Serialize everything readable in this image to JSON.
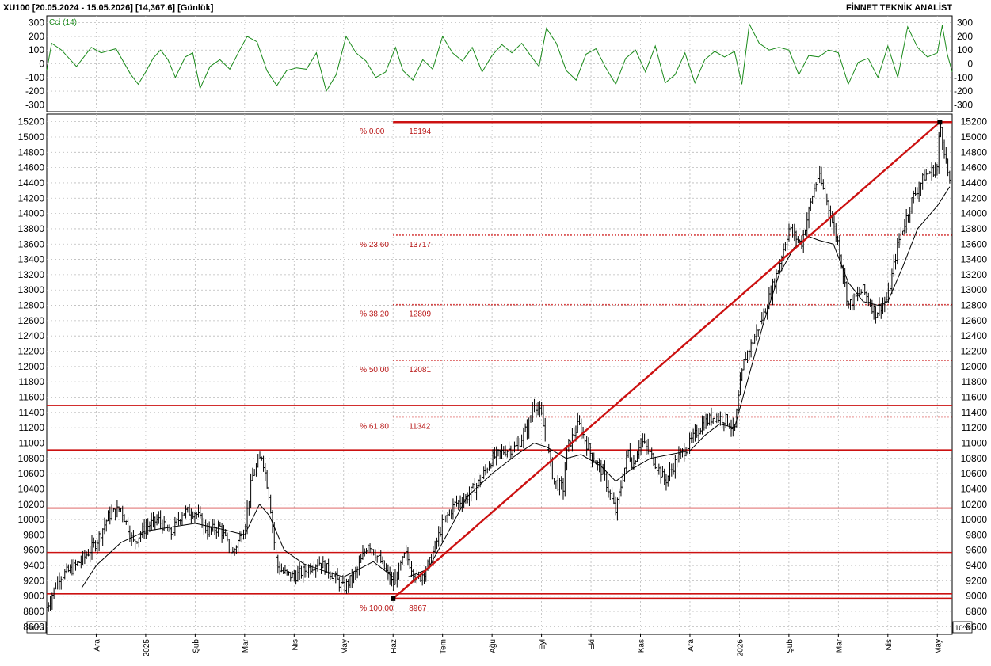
{
  "header": {
    "left": "XU100  [20.05.2024 - 15.05.2026]  [14,367.6]  [Günlük]",
    "right": "FİNNET TEKNİK ANALİST"
  },
  "cci": {
    "title": "Cci (14)",
    "ylim": [
      -350,
      350
    ],
    "ticks": [
      300,
      200,
      100,
      0,
      -100,
      -200,
      -300
    ],
    "tick_labels": [
      "300",
      "200",
      "100",
      "0",
      "-100",
      "-200",
      "-300"
    ],
    "color": "#1a8a1a"
  },
  "price": {
    "ylim": [
      8500,
      15300
    ],
    "ticks": [
      15200,
      15000,
      14800,
      14600,
      14400,
      14200,
      14000,
      13800,
      13600,
      13400,
      13200,
      13000,
      12800,
      12600,
      12400,
      12200,
      12000,
      11800,
      11600,
      11400,
      11200,
      11000,
      10800,
      10600,
      10400,
      10200,
      10000,
      9800,
      9600,
      9400,
      9200,
      9000,
      8800,
      8600
    ],
    "scale_label": "10^3",
    "bar_color": "#000000",
    "ma_color": "#000000",
    "line_color": "#cc1111"
  },
  "x_axis": {
    "labels": [
      "Ara",
      "2025",
      "Şub",
      "Mar",
      "Nis",
      "May",
      "Haz",
      "Tem",
      "Ağu",
      "Eyl",
      "Eki",
      "Kas",
      "Ara",
      "2026",
      "Şub",
      "Mar",
      "Nis",
      "May"
    ],
    "positions": [
      7.0,
      8.0,
      9.0,
      10.0,
      11.0,
      12.0,
      13.0,
      14.0,
      15.0,
      16.0,
      17.0,
      18.0,
      19.0,
      20.0,
      21.0,
      22.0,
      23.0,
      24.0
    ],
    "xlim": [
      6.0,
      24.3
    ]
  },
  "horizontal_lines": [
    9030,
    9570,
    10150,
    10910,
    11490
  ],
  "fibonacci": {
    "levels": [
      {
        "pct": "% 0.00",
        "value": "15194",
        "y": 15194,
        "style": "solid"
      },
      {
        "pct": "% 23.60",
        "value": "13717",
        "y": 13717,
        "style": "dotted"
      },
      {
        "pct": "% 38.20",
        "value": "12809",
        "y": 12809,
        "style": "dotted"
      },
      {
        "pct": "% 50.00",
        "value": "12081",
        "y": 12081,
        "style": "dotted"
      },
      {
        "pct": "% 61.80",
        "value": "11342",
        "y": 11342,
        "style": "dotted"
      },
      {
        "pct": "% 100.00",
        "value": "8967",
        "y": 8967,
        "style": "solid"
      }
    ],
    "x_start": 13.0
  },
  "trendline": {
    "from": [
      13.0,
      8967
    ],
    "to": [
      24.05,
      15194
    ]
  },
  "chart_data": {
    "type": "line",
    "title": "XU100",
    "series": [
      {
        "name": "Close",
        "x": [
          6.0,
          6.25,
          6.5,
          6.75,
          7.0,
          7.25,
          7.5,
          7.75,
          8.0,
          8.25,
          8.5,
          8.75,
          9.0,
          9.25,
          9.5,
          9.75,
          10.0,
          10.15,
          10.35,
          10.5,
          10.65,
          10.8,
          11.0,
          11.25,
          11.5,
          11.75,
          12.0,
          12.25,
          12.5,
          12.75,
          13.0,
          13.25,
          13.5,
          13.75,
          14.0,
          14.25,
          14.5,
          14.75,
          15.0,
          15.25,
          15.5,
          15.75,
          15.85,
          16.0,
          16.25,
          16.45,
          16.5,
          16.75,
          17.0,
          17.25,
          17.5,
          17.75,
          17.85,
          18.0,
          18.25,
          18.5,
          18.75,
          19.0,
          19.25,
          19.5,
          19.75,
          19.9,
          20.0,
          20.1,
          20.25,
          20.5,
          20.75,
          21.0,
          21.25,
          21.5,
          21.6,
          21.75,
          22.0,
          22.2,
          22.5,
          22.75,
          23.0,
          23.2,
          23.5,
          23.75,
          24.0,
          24.05,
          24.15,
          24.25
        ],
        "values": [
          8850,
          9250,
          9350,
          9500,
          9700,
          10050,
          10150,
          9700,
          9900,
          10000,
          9800,
          10100,
          10100,
          9850,
          9900,
          9550,
          9900,
          10550,
          10850,
          10300,
          9400,
          9300,
          9250,
          9350,
          9450,
          9300,
          9100,
          9300,
          9700,
          9450,
          9150,
          9550,
          9200,
          9450,
          9950,
          10200,
          10300,
          10500,
          10800,
          10900,
          10950,
          11250,
          11550,
          11350,
          10500,
          10400,
          10900,
          11250,
          10850,
          10600,
          10100,
          10900,
          10700,
          11050,
          10800,
          10500,
          10800,
          11000,
          11250,
          11350,
          11300,
          11150,
          11700,
          12100,
          12300,
          12700,
          13200,
          13800,
          13600,
          14300,
          14500,
          14200,
          13600,
          12800,
          13000,
          12700,
          12900,
          13600,
          14200,
          14500,
          14600,
          15194,
          14800,
          14367
        ]
      },
      {
        "name": "MA",
        "x": [
          6.7,
          7.0,
          7.5,
          8.0,
          8.5,
          9.0,
          9.5,
          10.0,
          10.3,
          10.5,
          10.8,
          11.2,
          11.6,
          12.0,
          12.3,
          12.6,
          13.0,
          13.3,
          13.7,
          14.0,
          14.5,
          15.0,
          15.5,
          15.85,
          16.1,
          16.5,
          16.8,
          17.2,
          17.5,
          17.8,
          18.2,
          18.6,
          19.0,
          19.3,
          19.6,
          19.9,
          20.2,
          20.5,
          20.8,
          21.1,
          21.4,
          21.6,
          21.9,
          22.2,
          22.5,
          22.8,
          23.0,
          23.3,
          23.6,
          24.0,
          24.25
        ],
        "values": [
          9100,
          9400,
          9700,
          9850,
          9900,
          9950,
          9880,
          9800,
          10200,
          10050,
          9600,
          9420,
          9330,
          9250,
          9350,
          9450,
          9250,
          9250,
          9350,
          9700,
          10300,
          10600,
          10850,
          11000,
          10950,
          10800,
          10850,
          10700,
          10500,
          10650,
          10800,
          10850,
          10900,
          11100,
          11250,
          11200,
          11900,
          12600,
          13200,
          13550,
          13700,
          13650,
          13600,
          13100,
          12850,
          12800,
          12850,
          13300,
          13800,
          14100,
          14350
        ]
      }
    ],
    "cci_series": {
      "name": "Cci (14)",
      "x": [
        6.0,
        6.1,
        6.3,
        6.6,
        6.9,
        7.1,
        7.4,
        7.7,
        7.85,
        8.0,
        8.15,
        8.3,
        8.45,
        8.6,
        8.8,
        8.95,
        9.1,
        9.3,
        9.5,
        9.7,
        9.9,
        10.05,
        10.25,
        10.45,
        10.65,
        10.85,
        11.05,
        11.25,
        11.45,
        11.65,
        11.85,
        12.05,
        12.25,
        12.45,
        12.65,
        12.85,
        13.05,
        13.2,
        13.4,
        13.6,
        13.8,
        14.0,
        14.2,
        14.4,
        14.6,
        14.8,
        15.0,
        15.2,
        15.4,
        15.6,
        15.8,
        15.95,
        16.1,
        16.3,
        16.5,
        16.7,
        16.9,
        17.1,
        17.3,
        17.5,
        17.7,
        17.9,
        18.1,
        18.3,
        18.5,
        18.7,
        18.9,
        19.1,
        19.3,
        19.5,
        19.7,
        19.9,
        20.05,
        20.2,
        20.4,
        20.6,
        20.8,
        21.0,
        21.2,
        21.4,
        21.6,
        21.8,
        22.0,
        22.2,
        22.4,
        22.6,
        22.8,
        23.0,
        23.2,
        23.4,
        23.6,
        23.8,
        24.0,
        24.1,
        24.2,
        24.3
      ],
      "values": [
        -50,
        150,
        100,
        -20,
        120,
        80,
        110,
        -80,
        -150,
        -60,
        40,
        100,
        30,
        -100,
        50,
        80,
        -180,
        -20,
        30,
        -40,
        100,
        200,
        160,
        -50,
        -160,
        -50,
        -30,
        -40,
        80,
        -200,
        -80,
        200,
        80,
        20,
        -100,
        -60,
        120,
        -50,
        -120,
        30,
        -40,
        200,
        80,
        20,
        120,
        -60,
        60,
        140,
        80,
        150,
        50,
        -20,
        260,
        150,
        -50,
        -120,
        70,
        110,
        -30,
        -150,
        40,
        100,
        -60,
        130,
        -140,
        -80,
        80,
        -140,
        30,
        90,
        50,
        90,
        -150,
        290,
        150,
        100,
        120,
        100,
        -80,
        60,
        50,
        100,
        80,
        -150,
        10,
        40,
        -100,
        130,
        -100,
        270,
        120,
        50,
        80,
        280,
        70,
        -60
      ]
    }
  }
}
